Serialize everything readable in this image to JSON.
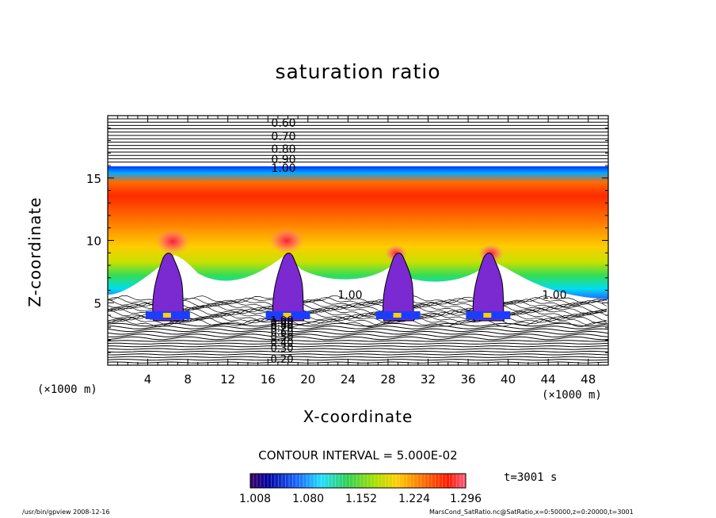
{
  "chart_data": {
    "type": "heatmap",
    "title": "saturation ratio",
    "xlabel": "X-coordinate",
    "ylabel": "Z-coordinate",
    "x_unit_label": "(×1000 m)",
    "x_ticks": [
      4,
      8,
      12,
      16,
      20,
      24,
      28,
      32,
      36,
      40,
      44,
      48
    ],
    "y_ticks": [
      5,
      10,
      15
    ],
    "xlim": [
      0,
      50
    ],
    "ylim": [
      0,
      20
    ],
    "contour_interval_label": "CONTOUR INTERVAL = 5.000E-02",
    "contour_labels_upper": [
      "0.60",
      "0.70",
      "0.80",
      "0.90",
      "1.00"
    ],
    "contour_labels_lower": [
      "0.20",
      "0.30",
      "0.40",
      "0.50",
      "0.60",
      "0.70",
      "0.80",
      "0.90",
      "1.00"
    ],
    "contour_labels_mid": [
      "1.00",
      "1.00"
    ],
    "colorbar_ticks": [
      "1.008",
      "1.080",
      "1.152",
      "1.224",
      "1.296"
    ],
    "colorbar_range": [
      1.008,
      1.296
    ],
    "time_label": "t=3001 s",
    "cloud_plume_x": [
      6,
      18,
      29,
      38
    ]
  },
  "footer": {
    "program": "/usr/bin/gpview   2008-12-16",
    "source": "MarsCond_SatRatio.nc@SatRatio,x=0:50000,z=0:20000,t=3001"
  }
}
